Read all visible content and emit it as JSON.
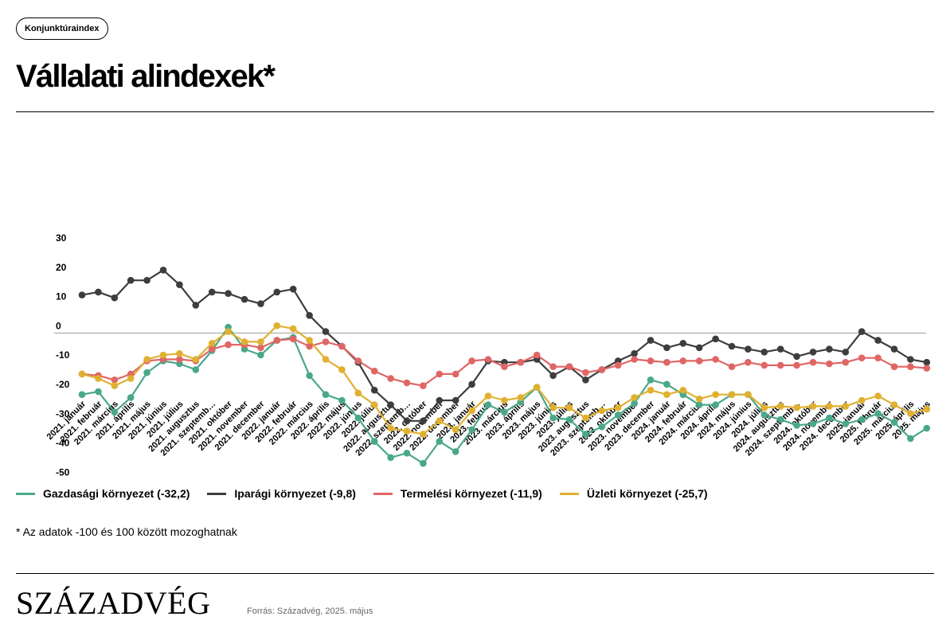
{
  "header": {
    "tag": "Konjunktúraindex",
    "title": "Vállalati alindexek*"
  },
  "footnote": "* Az adatok -100 és 100 között mozoghatnak",
  "footer": {
    "logo": "SZÁZADVÉG",
    "source": "Forrás: Századvég, 2025. május"
  },
  "chart_data": {
    "type": "line",
    "title": "Vállalati alindexek*",
    "xlabel": "",
    "ylabel": "",
    "ylim": [
      -50,
      30
    ],
    "yticks": [
      30,
      20,
      10,
      0,
      -10,
      -20,
      -30,
      -40,
      -50
    ],
    "grid": false,
    "zero_line": true,
    "legend_position": "bottom",
    "categories": [
      "2021. január",
      "2021. február",
      "2021. március",
      "2021. április",
      "2021. május",
      "2021. június",
      "2021. július",
      "2021. augusztus",
      "2021. szeptemb…",
      "2021. október",
      "2021. november",
      "2021. december",
      "2022. január",
      "2022. február",
      "2022. március",
      "2022. április",
      "2022. május",
      "2022. június",
      "2022. július",
      "2022. augusztus",
      "2022. szeptemb…",
      "2022. október",
      "2022. november",
      "2022. december",
      "2023. január",
      "2023. február",
      "2023. március",
      "2023. április",
      "2023. május",
      "2023. június",
      "2023. július",
      "2023. augusztus",
      "2023. szeptemb…",
      "2023. október",
      "2023. november",
      "2023. december",
      "2024. január",
      "2024. február",
      "2024. március",
      "2024. április",
      "2024. május",
      "2024. június",
      "2024. július",
      "2024. augusztus",
      "2024. szeptemb…",
      "2024. október",
      "2024. november",
      "2024. december",
      "2025. január",
      "2025. február",
      "2025. március",
      "2025. április",
      "2025. május"
    ],
    "series": [
      {
        "name": "Gazdasági környezet (-32,2)",
        "color": "#4aa88a",
        "values": [
          -21,
          -20,
          -27,
          -22,
          -13.5,
          -9.5,
          -10.5,
          -12.5,
          -6,
          2,
          -5.5,
          -7.5,
          -2.5,
          -1.5,
          -14.5,
          -21,
          -23,
          -29,
          -37,
          -42.5,
          -41,
          -44.5,
          -37,
          -40.5,
          -33,
          -24.5,
          -27,
          -23.5,
          -18.5,
          -29,
          -29.5,
          -34.5,
          -32,
          -28,
          -24,
          -16,
          -17.5,
          -21,
          -24.5,
          -24.5,
          -21,
          -21,
          -28,
          -29.5,
          -31.5,
          -31,
          -29,
          -31,
          -29.5,
          -27.5,
          -30.5,
          -36,
          -32.5
        ]
      },
      {
        "name": "Iparági környezet (-9,8)",
        "color": "#3d3d3d",
        "values": [
          13,
          14,
          12,
          18,
          18,
          21.5,
          16.5,
          9.5,
          14,
          13.5,
          11.5,
          10,
          14,
          15,
          6,
          0.5,
          -4.5,
          -10,
          -19.5,
          -24.5,
          -30,
          -30,
          -23,
          -23,
          -17.5,
          -9.5,
          -10,
          -10,
          -9,
          -14.5,
          -11.5,
          -16,
          -12.5,
          -9.5,
          -7,
          -2.5,
          -5,
          -3.5,
          -5,
          -2,
          -4.5,
          -5.5,
          -6.5,
          -5.5,
          -8,
          -6.5,
          -5.5,
          -6.5,
          0.5,
          -2.5,
          -5.5,
          -9,
          -10
        ]
      },
      {
        "name": "Termelési környezet (-11,9)",
        "color": "#e06666",
        "values": [
          -14,
          -14.5,
          -16,
          -14,
          -9.5,
          -9,
          -9,
          -9.5,
          -5.5,
          -4,
          -4,
          -5,
          -2.5,
          -2,
          -4.5,
          -3,
          -4.5,
          -9.5,
          -13,
          -15.5,
          -17,
          -18,
          -14,
          -14,
          -9.5,
          -9,
          -11.5,
          -10,
          -7.5,
          -11.5,
          -11.5,
          -13.5,
          -12.5,
          -11,
          -9,
          -9.5,
          -10,
          -9.5,
          -9.5,
          -9,
          -11.5,
          -10,
          -11,
          -11,
          -11,
          -10,
          -10.5,
          -10,
          -8.5,
          -8.5,
          -11.5,
          -11.5,
          -12
        ]
      },
      {
        "name": "Üzleti környezet (-25,7)",
        "color": "#e0b030",
        "values": [
          -14,
          -15.5,
          -18,
          -15.5,
          -9,
          -7.5,
          -7,
          -9,
          -3.5,
          0.5,
          -3,
          -3,
          2.5,
          1.5,
          -2.5,
          -9,
          -12.5,
          -20.5,
          -24.5,
          -32.5,
          -33.5,
          -34.5,
          -30,
          -33,
          -26.5,
          -21.5,
          -23,
          -22,
          -18.5,
          -25.5,
          -25.5,
          -29,
          -26.5,
          -25.5,
          -22,
          -19.5,
          -21,
          -19.5,
          -22.5,
          -21,
          -21,
          -21,
          -25.5,
          -25,
          -25.5,
          -25,
          -25,
          -25,
          -23,
          -21.5,
          -24.5,
          -27.5,
          -26
        ]
      }
    ]
  }
}
